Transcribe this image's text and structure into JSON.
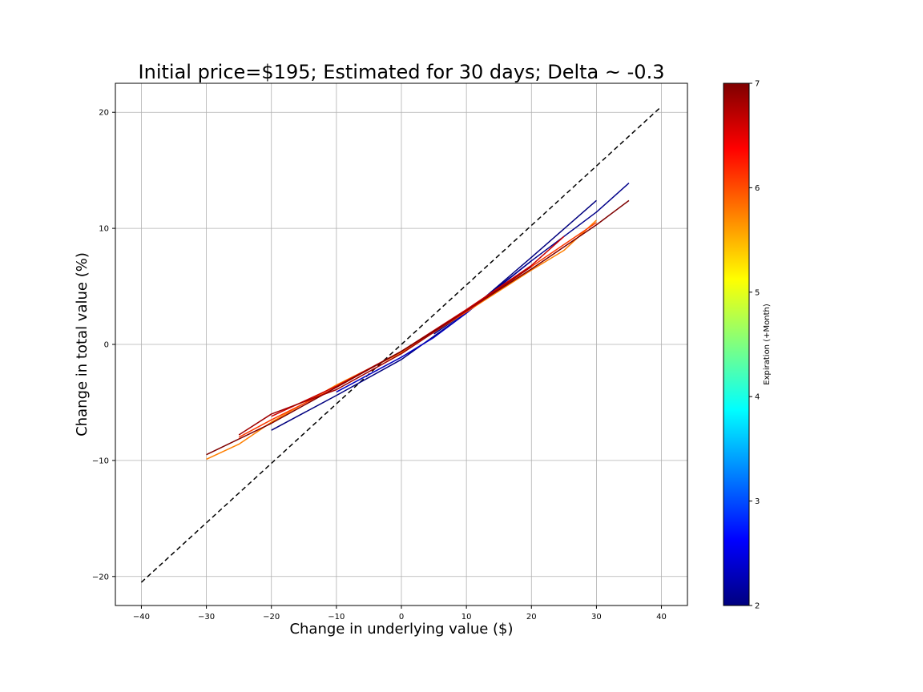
{
  "chart_data": {
    "type": "line",
    "title": "Initial price=$195; Estimated for 30 days; Delta ~ -0.3",
    "xlabel": "Change in underlying value ($)",
    "ylabel": "Change in total value (%)",
    "xlim": [
      -44,
      44
    ],
    "ylim": [
      -22.5,
      22.5
    ],
    "xticks": [
      -40,
      -30,
      -20,
      -10,
      0,
      10,
      20,
      30,
      40
    ],
    "yticks": [
      -20,
      -10,
      0,
      10,
      20
    ],
    "xtick_labels": [
      "−40",
      "−30",
      "−20",
      "−10",
      "0",
      "10",
      "20",
      "30",
      "40"
    ],
    "ytick_labels": [
      "−20",
      "−10",
      "0",
      "10",
      "20"
    ],
    "grid": true,
    "reference_line": {
      "style": "dashed",
      "color": "#000000",
      "x": [
        -40,
        40
      ],
      "y": [
        -20.5,
        20.5
      ]
    },
    "colormap": "jet",
    "colorbar": {
      "label": "Expiration (+Month)",
      "range": [
        2,
        7
      ],
      "ticks": [
        2,
        3,
        4,
        5,
        6,
        7
      ],
      "tick_labels": [
        "2",
        "3",
        "4",
        "5",
        "6",
        "7"
      ]
    },
    "series": [
      {
        "color": "#00007f",
        "x": [
          -20,
          -10,
          0,
          10,
          20,
          30
        ],
        "y": [
          -7.4,
          -4.4,
          -1.3,
          2.7,
          7.5,
          12.4
        ]
      },
      {
        "color": "#0000c0",
        "x": [
          -10,
          0,
          5,
          10,
          20
        ],
        "y": [
          -4.1,
          -1.1,
          0.6,
          2.7,
          7.2
        ]
      },
      {
        "color": "#00008a",
        "x": [
          5,
          10,
          20,
          30,
          35
        ],
        "y": [
          0.9,
          2.8,
          7.2,
          11.4,
          13.9
        ]
      },
      {
        "color": "#ff7f00",
        "x": [
          -30,
          -25,
          -20,
          -10,
          0,
          10,
          20,
          25,
          30
        ],
        "y": [
          -9.9,
          -8.6,
          -6.7,
          -3.5,
          -0.7,
          2.8,
          6.4,
          8.1,
          10.7
        ]
      },
      {
        "color": "#ff3b00",
        "x": [
          -25,
          -20,
          -10,
          0,
          10,
          20,
          30
        ],
        "y": [
          -8.0,
          -6.5,
          -3.7,
          -0.6,
          2.8,
          6.7,
          10.5
        ]
      },
      {
        "color": "#cc0000",
        "x": [
          -20,
          -10,
          0,
          10,
          20,
          25
        ],
        "y": [
          -6.2,
          -3.6,
          -0.6,
          3.0,
          6.8,
          9.3
        ]
      },
      {
        "color": "#7f0000",
        "x": [
          -30,
          -20,
          -10,
          0,
          10,
          20,
          30,
          35
        ],
        "y": [
          -9.5,
          -6.8,
          -3.7,
          -0.6,
          2.9,
          6.5,
          10.3,
          12.4
        ]
      },
      {
        "color": "#a00000",
        "x": [
          -25,
          -20,
          -10,
          0,
          10,
          20
        ],
        "y": [
          -7.8,
          -6.0,
          -3.9,
          -0.8,
          2.9,
          6.7
        ]
      }
    ]
  }
}
